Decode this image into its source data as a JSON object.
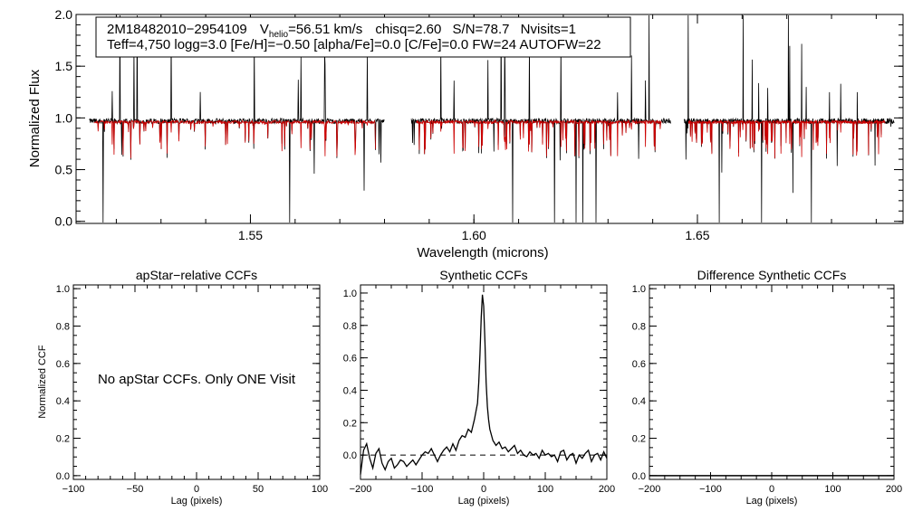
{
  "chart_data": [
    {
      "type": "line",
      "name": "spectrum",
      "xlabel": "Wavelength (microns)",
      "ylabel": "Normalized Flux",
      "xlim": [
        1.511,
        1.696
      ],
      "ylim": [
        -0.02,
        2.0
      ],
      "xticks": [
        1.55,
        1.6,
        1.65
      ],
      "xtick_labels": [
        "1.55",
        "1.60",
        "1.65"
      ],
      "yticks": [
        0.0,
        0.5,
        1.0,
        1.5,
        2.0
      ],
      "ytick_labels": [
        "0.0",
        "0.5",
        "1.0",
        "1.5",
        "2.0"
      ],
      "chips": [
        [
          1.514,
          1.58
        ],
        [
          1.586,
          1.644
        ],
        [
          1.647,
          1.694
        ]
      ],
      "series": [
        {
          "name": "observed",
          "color": "#000000"
        },
        {
          "name": "synthetic model",
          "color": "#cc0000"
        }
      ],
      "info": {
        "star_id": "2M18482010−2954109",
        "vhelio_label": "V",
        "vhelio_sub": "helio",
        "vhelio_value": "=56.51 km/s",
        "chisq": "chisq=2.60",
        "snr": "S/N=78.7",
        "nvisits": "Nvisits=1",
        "params": "Teff=4,750 logg=3.0 [Fe/H]=−0.50 [alpha/Fe]=0.0 [C/Fe]=0.0 FW=24 AUTOFW=22"
      }
    },
    {
      "type": "line",
      "name": "apstar-ccf",
      "title": "apStar−relative CCFs",
      "xlabel": "Lag (pixels)",
      "ylabel": "Normalized CCF",
      "xlim": [
        -100,
        100
      ],
      "ylim": [
        -0.02,
        1.02
      ],
      "xticks": [
        -100,
        -50,
        0,
        50,
        100
      ],
      "xtick_labels": [
        "−100",
        "−50",
        "0",
        "50",
        "100"
      ],
      "yticks": [
        0.0,
        0.2,
        0.4,
        0.6,
        0.8,
        1.0
      ],
      "ytick_labels": [
        "0.0",
        "0.2",
        "0.4",
        "0.6",
        "0.8",
        "1.0"
      ],
      "annotation": "No apStar CCFs.  Only ONE Visit",
      "series": []
    },
    {
      "type": "line",
      "name": "synthetic-ccf",
      "title": "Synthetic CCFs",
      "xlabel": "Lag (pixels)",
      "xlim": [
        -200,
        200
      ],
      "ylim": [
        -0.15,
        1.05
      ],
      "xticks": [
        -200,
        -100,
        0,
        100,
        200
      ],
      "xtick_labels": [
        "−200",
        "−100",
        "0",
        "100",
        "200"
      ],
      "yticks": [
        0.0,
        0.2,
        0.4,
        0.6,
        0.8,
        1.0
      ],
      "ytick_labels": [
        "0.0",
        "0.2",
        "0.4",
        "0.6",
        "0.8",
        "1.0"
      ],
      "zero_line": 0.0,
      "series": [
        {
          "name": "ccf",
          "x": [
            -200,
            -195,
            -190,
            -185,
            -180,
            -175,
            -170,
            -165,
            -160,
            -155,
            -150,
            -145,
            -140,
            -135,
            -130,
            -125,
            -120,
            -115,
            -110,
            -105,
            -100,
            -95,
            -90,
            -85,
            -80,
            -75,
            -70,
            -65,
            -60,
            -55,
            -50,
            -45,
            -40,
            -35,
            -30,
            -25,
            -20,
            -15,
            -10,
            -8,
            -6,
            -4,
            -2,
            0,
            2,
            4,
            6,
            8,
            10,
            15,
            20,
            25,
            30,
            35,
            40,
            45,
            50,
            55,
            60,
            65,
            70,
            75,
            80,
            85,
            90,
            95,
            100,
            105,
            110,
            115,
            120,
            125,
            130,
            135,
            140,
            145,
            150,
            155,
            160,
            165,
            170,
            175,
            180,
            185,
            190,
            195,
            200
          ],
          "y": [
            -0.12,
            0.03,
            0.07,
            -0.02,
            -0.08,
            0.01,
            0.04,
            -0.05,
            -0.09,
            -0.04,
            -0.02,
            -0.08,
            -0.06,
            -0.03,
            -0.04,
            -0.07,
            -0.05,
            -0.03,
            -0.06,
            -0.03,
            0.0,
            0.02,
            0.01,
            0.04,
            0.0,
            -0.04,
            0.0,
            0.03,
            0.05,
            0.02,
            0.07,
            0.03,
            0.09,
            0.12,
            0.11,
            0.16,
            0.14,
            0.22,
            0.32,
            0.45,
            0.62,
            0.85,
            0.99,
            0.92,
            0.7,
            0.45,
            0.3,
            0.22,
            0.16,
            0.09,
            0.06,
            0.08,
            0.04,
            0.05,
            0.02,
            0.04,
            0.06,
            0.01,
            0.03,
            0.0,
            -0.01,
            0.02,
            0.0,
            0.01,
            -0.02,
            0.03,
            0.0,
            0.01,
            -0.01,
            0.0,
            -0.04,
            0.02,
            0.03,
            -0.03,
            0.0,
            0.01,
            -0.05,
            0.0,
            -0.02,
            0.01,
            0.03,
            -0.04,
            0.0,
            0.01,
            -0.03,
            0.02,
            -0.02
          ]
        }
      ]
    },
    {
      "type": "line",
      "name": "difference-ccf",
      "title": "Difference Synthetic CCFs",
      "xlabel": "Lag (pixels)",
      "xlim": [
        -200,
        200
      ],
      "ylim": [
        -0.02,
        1.02
      ],
      "xticks": [
        -200,
        -100,
        0,
        100,
        200
      ],
      "xtick_labels": [
        "−200",
        "−100",
        "0",
        "100",
        "200"
      ],
      "yticks": [
        0.0,
        0.2,
        0.4,
        0.6,
        0.8,
        1.0
      ],
      "ytick_labels": [
        "0.0",
        "0.2",
        "0.4",
        "0.6",
        "0.8",
        "1.0"
      ],
      "series": [
        {
          "name": "difference",
          "x": [
            -200,
            200
          ],
          "y": [
            0.0,
            0.0
          ]
        }
      ]
    }
  ]
}
